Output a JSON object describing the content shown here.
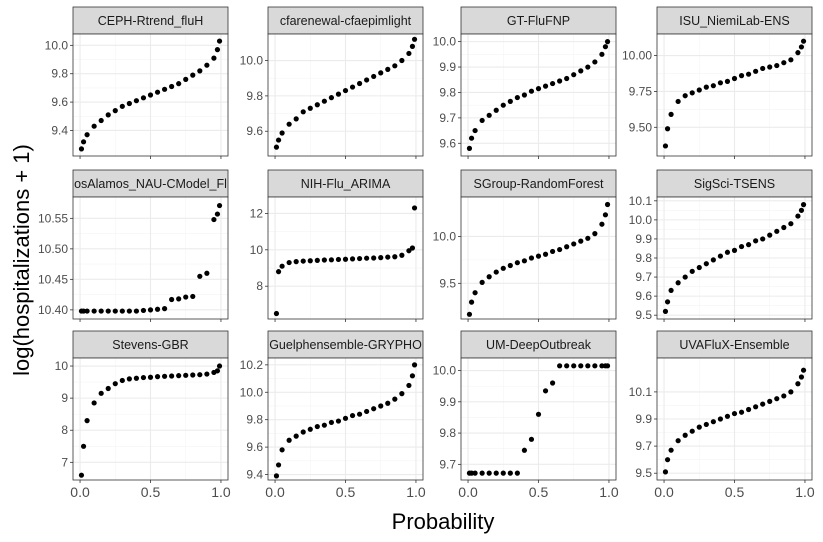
{
  "chart_data": {
    "type": "scatter",
    "xlabel": "Probability",
    "ylabel": "log(hospitalizations + 1)",
    "x": [
      0.01,
      0.025,
      0.05,
      0.1,
      0.15,
      0.2,
      0.25,
      0.3,
      0.35,
      0.4,
      0.45,
      0.5,
      0.55,
      0.6,
      0.65,
      0.7,
      0.75,
      0.8,
      0.85,
      0.9,
      0.95,
      0.975,
      0.99
    ],
    "xticks": [
      "0.0",
      "0.5",
      "1.0"
    ],
    "xtick_values": [
      0,
      0.5,
      1.0
    ],
    "xlim": [
      -0.05,
      1.05
    ],
    "grid": true,
    "panels": [
      {
        "title": "CEPH-Rtrend_fluH",
        "ylim": [
          9.22,
          10.08
        ],
        "yticks": [
          "9.4",
          "9.6",
          "9.8",
          "10.0"
        ],
        "ytick_values": [
          9.4,
          9.6,
          9.8,
          10.0
        ],
        "values": [
          9.27,
          9.32,
          9.37,
          9.43,
          9.47,
          9.51,
          9.54,
          9.57,
          9.59,
          9.61,
          9.63,
          9.65,
          9.67,
          9.69,
          9.71,
          9.73,
          9.76,
          9.79,
          9.82,
          9.86,
          9.91,
          9.97,
          10.03
        ]
      },
      {
        "title": "cfarenewal-cfaepimlight",
        "ylim": [
          9.46,
          10.15
        ],
        "yticks": [
          "9.6",
          "9.8",
          "10.0"
        ],
        "ytick_values": [
          9.6,
          9.8,
          10.0
        ],
        "values": [
          9.51,
          9.55,
          9.59,
          9.64,
          9.67,
          9.71,
          9.73,
          9.75,
          9.77,
          9.79,
          9.81,
          9.83,
          9.85,
          9.87,
          9.89,
          9.91,
          9.93,
          9.95,
          9.97,
          10.0,
          10.04,
          10.08,
          10.12
        ]
      },
      {
        "title": "GT-FluFNP",
        "ylim": [
          9.55,
          10.03
        ],
        "yticks": [
          "9.6",
          "9.7",
          "9.8",
          "9.9",
          "10.0"
        ],
        "ytick_values": [
          9.6,
          9.7,
          9.8,
          9.9,
          10.0
        ],
        "values": [
          9.58,
          9.62,
          9.65,
          9.69,
          9.71,
          9.73,
          9.75,
          9.765,
          9.78,
          9.79,
          9.805,
          9.815,
          9.825,
          9.835,
          9.845,
          9.855,
          9.87,
          9.885,
          9.9,
          9.92,
          9.95,
          9.98,
          10.0
        ]
      },
      {
        "title": "ISU_NiemiLab-ENS",
        "ylim": [
          9.3,
          10.15
        ],
        "yticks": [
          "9.50",
          "9.75",
          "10.00"
        ],
        "ytick_values": [
          9.5,
          9.75,
          10.0
        ],
        "values": [
          9.37,
          9.49,
          9.59,
          9.68,
          9.72,
          9.74,
          9.76,
          9.78,
          9.79,
          9.81,
          9.82,
          9.84,
          9.86,
          9.87,
          9.89,
          9.91,
          9.92,
          9.93,
          9.95,
          9.97,
          10.02,
          10.06,
          10.1
        ]
      },
      {
        "title": "osAlamos_NAU-CModel_Fl",
        "ylim": [
          10.385,
          10.585
        ],
        "yticks": [
          "10.40",
          "10.45",
          "10.50",
          "10.55"
        ],
        "ytick_values": [
          10.4,
          10.45,
          10.5,
          10.55
        ],
        "values": [
          10.398,
          10.398,
          10.398,
          10.398,
          10.398,
          10.398,
          10.398,
          10.398,
          10.398,
          10.398,
          10.399,
          10.4,
          10.401,
          10.402,
          10.417,
          10.418,
          10.421,
          10.422,
          10.455,
          10.46,
          10.548,
          10.557,
          10.571
        ]
      },
      {
        "title": "NIH-Flu_ARIMA",
        "ylim": [
          6.2,
          12.9
        ],
        "yticks": [
          "8",
          "10",
          "12"
        ],
        "ytick_values": [
          8,
          10,
          12
        ],
        "values": [
          6.5,
          8.8,
          9.1,
          9.3,
          9.35,
          9.38,
          9.4,
          9.42,
          9.44,
          9.45,
          9.47,
          9.48,
          9.5,
          9.52,
          9.54,
          9.55,
          9.57,
          9.6,
          9.62,
          9.7,
          9.95,
          10.1,
          12.3
        ]
      },
      {
        "title": "SGroup-RandomForest",
        "ylim": [
          9.12,
          10.42
        ],
        "yticks": [
          "9.5",
          "10.0"
        ],
        "ytick_values": [
          9.5,
          10.0
        ],
        "values": [
          9.17,
          9.3,
          9.4,
          9.51,
          9.57,
          9.62,
          9.66,
          9.69,
          9.72,
          9.74,
          9.77,
          9.79,
          9.81,
          9.84,
          9.86,
          9.89,
          9.92,
          9.95,
          9.98,
          10.03,
          10.13,
          10.23,
          10.34
        ]
      },
      {
        "title": "SigSci-TSENS",
        "ylim": [
          9.48,
          10.12
        ],
        "yticks": [
          "9.5",
          "9.6",
          "9.7",
          "9.8",
          "9.9",
          "10.0",
          "10.1"
        ],
        "ytick_values": [
          9.5,
          9.6,
          9.7,
          9.8,
          9.9,
          10.0,
          10.1
        ],
        "values": [
          9.52,
          9.57,
          9.63,
          9.67,
          9.7,
          9.73,
          9.75,
          9.77,
          9.79,
          9.81,
          9.83,
          9.84,
          9.86,
          9.87,
          9.89,
          9.9,
          9.92,
          9.94,
          9.96,
          9.98,
          10.02,
          10.05,
          10.08
        ]
      },
      {
        "title": "Stevens-GBR",
        "ylim": [
          6.45,
          10.25
        ],
        "yticks": [
          "7",
          "8",
          "9",
          "10"
        ],
        "ytick_values": [
          7,
          8,
          9,
          10
        ],
        "values": [
          6.6,
          7.5,
          8.3,
          8.85,
          9.15,
          9.3,
          9.45,
          9.55,
          9.6,
          9.62,
          9.64,
          9.65,
          9.67,
          9.68,
          9.69,
          9.7,
          9.71,
          9.72,
          9.73,
          9.75,
          9.8,
          9.85,
          10.0
        ]
      },
      {
        "title": "Guelphensemble-GRYPHO",
        "ylim": [
          9.36,
          10.25
        ],
        "yticks": [
          "9.4",
          "9.6",
          "9.8",
          "10.0",
          "10.2"
        ],
        "ytick_values": [
          9.4,
          9.6,
          9.8,
          10.0,
          10.2
        ],
        "values": [
          9.39,
          9.47,
          9.58,
          9.65,
          9.68,
          9.71,
          9.73,
          9.75,
          9.76,
          9.78,
          9.79,
          9.81,
          9.83,
          9.84,
          9.86,
          9.88,
          9.9,
          9.92,
          9.95,
          9.99,
          10.05,
          10.12,
          10.2
        ]
      },
      {
        "title": "UM-DeepOutbreak",
        "ylim": [
          9.65,
          10.04
        ],
        "yticks": [
          "9.7",
          "9.8",
          "9.9",
          "10.0"
        ],
        "ytick_values": [
          9.7,
          9.8,
          9.9,
          10.0
        ],
        "values": [
          9.672,
          9.672,
          9.672,
          9.672,
          9.672,
          9.672,
          9.672,
          9.672,
          9.672,
          9.745,
          9.78,
          9.86,
          9.935,
          9.96,
          10.015,
          10.015,
          10.015,
          10.015,
          10.015,
          10.015,
          10.015,
          10.015,
          10.015
        ]
      },
      {
        "title": "UVAFluX-Ensemble",
        "ylim": [
          9.45,
          10.35
        ],
        "yticks": [
          "9.5",
          "9.7",
          "9.9",
          "10.1"
        ],
        "ytick_values": [
          9.5,
          9.7,
          9.9,
          10.1
        ],
        "values": [
          9.51,
          9.6,
          9.67,
          9.74,
          9.78,
          9.81,
          9.84,
          9.86,
          9.88,
          9.9,
          9.92,
          9.94,
          9.95,
          9.97,
          9.99,
          10.01,
          10.03,
          10.05,
          10.07,
          10.1,
          10.16,
          10.21,
          10.26
        ]
      }
    ]
  }
}
